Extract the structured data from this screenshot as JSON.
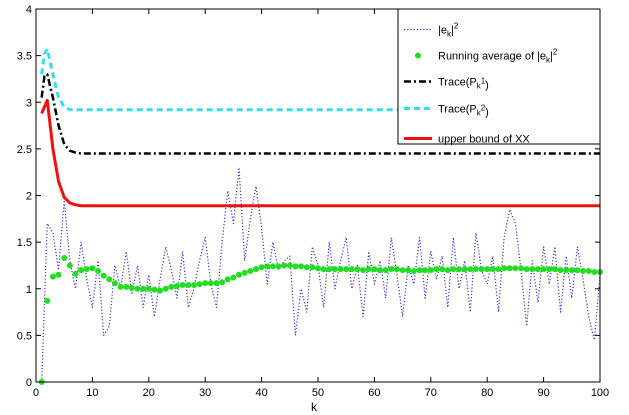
{
  "chart_data": {
    "type": "line",
    "xlabel": "k",
    "ylabel": "",
    "xlim": [
      0,
      100
    ],
    "ylim": [
      0,
      4
    ],
    "x_ticks": [
      "0",
      "10",
      "20",
      "30",
      "40",
      "50",
      "60",
      "70",
      "80",
      "90",
      "100"
    ],
    "y_ticks": [
      "0",
      "0.5",
      "1",
      "1.5",
      "2",
      "2.5",
      "3",
      "3.5",
      "4"
    ],
    "grid": false,
    "legend_position": "top-right",
    "series": [
      {
        "name": "|e_k|^2",
        "legend_main": "|e",
        "legend_sub": "k",
        "legend_sup": "2",
        "style": "dotted",
        "color": "#3333cc",
        "x": [
          1,
          2,
          3,
          4,
          5,
          6,
          7,
          8,
          9,
          10,
          11,
          12,
          13,
          14,
          15,
          16,
          17,
          18,
          19,
          20,
          21,
          22,
          23,
          24,
          25,
          26,
          27,
          28,
          29,
          30,
          31,
          32,
          33,
          34,
          35,
          36,
          37,
          38,
          39,
          40,
          41,
          42,
          43,
          44,
          45,
          46,
          47,
          48,
          49,
          50,
          51,
          52,
          53,
          54,
          55,
          56,
          57,
          58,
          59,
          60,
          61,
          62,
          63,
          64,
          65,
          66,
          67,
          68,
          69,
          70,
          71,
          72,
          73,
          74,
          75,
          76,
          77,
          78,
          79,
          80,
          81,
          82,
          83,
          84,
          85,
          86,
          87,
          88,
          89,
          90,
          91,
          92,
          93,
          94,
          95,
          96,
          97,
          98,
          99,
          100
        ],
        "y": [
          0.0,
          1.7,
          1.6,
          1.2,
          1.95,
          1.3,
          1.0,
          1.5,
          1.1,
          0.8,
          1.3,
          0.5,
          0.6,
          1.25,
          1.0,
          1.4,
          0.95,
          1.25,
          0.8,
          1.15,
          0.7,
          1.1,
          1.45,
          1.2,
          0.9,
          1.4,
          0.8,
          1.0,
          1.3,
          1.55,
          1.05,
          0.8,
          1.5,
          2.05,
          1.7,
          2.3,
          1.3,
          1.75,
          2.1,
          1.65,
          1.05,
          1.5,
          1.2,
          1.3,
          1.35,
          0.5,
          1.0,
          0.75,
          1.45,
          1.25,
          0.8,
          1.5,
          1.0,
          1.3,
          1.55,
          1.0,
          1.25,
          0.7,
          1.4,
          1.05,
          1.3,
          0.9,
          1.55,
          1.15,
          0.7,
          1.25,
          1.05,
          1.55,
          0.9,
          1.4,
          1.1,
          1.35,
          0.8,
          1.55,
          1.0,
          1.3,
          0.75,
          1.6,
          1.2,
          1.05,
          1.35,
          0.75,
          1.55,
          1.85,
          1.7,
          1.2,
          0.6,
          1.3,
          0.85,
          1.45,
          1.05,
          1.45,
          0.75,
          1.35,
          0.9,
          1.45,
          1.1,
          0.7,
          0.45,
          1.15
        ]
      },
      {
        "name": "Running average of |e_k|^2",
        "legend_main": "Running average of |e",
        "legend_sub": "k",
        "legend_sup": "2",
        "style": "markers",
        "color": "#22dd22",
        "x": [
          1,
          2,
          3,
          4,
          5,
          6,
          7,
          8,
          9,
          10,
          11,
          12,
          13,
          14,
          15,
          16,
          17,
          18,
          19,
          20,
          21,
          22,
          23,
          24,
          25,
          26,
          27,
          28,
          29,
          30,
          31,
          32,
          33,
          34,
          35,
          36,
          37,
          38,
          39,
          40,
          41,
          42,
          43,
          44,
          45,
          46,
          47,
          48,
          49,
          50,
          51,
          52,
          53,
          54,
          55,
          56,
          57,
          58,
          59,
          60,
          61,
          62,
          63,
          64,
          65,
          66,
          67,
          68,
          69,
          70,
          71,
          72,
          73,
          74,
          75,
          76,
          77,
          78,
          79,
          80,
          81,
          82,
          83,
          84,
          85,
          86,
          87,
          88,
          89,
          90,
          91,
          92,
          93,
          94,
          95,
          96,
          97,
          98,
          99,
          100
        ],
        "y": [
          0.0,
          0.87,
          1.13,
          1.15,
          1.33,
          1.25,
          1.16,
          1.2,
          1.21,
          1.22,
          1.19,
          1.14,
          1.1,
          1.06,
          1.02,
          1.02,
          1.01,
          1.0,
          1.0,
          1.0,
          0.99,
          0.98,
          1.0,
          1.02,
          1.03,
          1.04,
          1.04,
          1.04,
          1.05,
          1.06,
          1.06,
          1.06,
          1.07,
          1.1,
          1.12,
          1.15,
          1.17,
          1.19,
          1.21,
          1.23,
          1.24,
          1.24,
          1.24,
          1.25,
          1.25,
          1.24,
          1.24,
          1.23,
          1.23,
          1.22,
          1.21,
          1.21,
          1.21,
          1.21,
          1.21,
          1.21,
          1.21,
          1.2,
          1.21,
          1.21,
          1.2,
          1.2,
          1.21,
          1.21,
          1.2,
          1.2,
          1.19,
          1.2,
          1.2,
          1.2,
          1.21,
          1.21,
          1.2,
          1.21,
          1.21,
          1.21,
          1.21,
          1.21,
          1.21,
          1.21,
          1.21,
          1.21,
          1.22,
          1.22,
          1.22,
          1.22,
          1.21,
          1.21,
          1.21,
          1.21,
          1.21,
          1.21,
          1.2,
          1.2,
          1.2,
          1.2,
          1.19,
          1.19,
          1.18,
          1.18
        ]
      },
      {
        "name": "Trace(P_k^1)",
        "legend_main": "Trace(P",
        "legend_sub": "k",
        "legend_sup": "1",
        "legend_tail": ")",
        "style": "dashdot",
        "color": "#000000",
        "x": [
          1,
          1.5,
          2,
          3,
          4,
          5,
          6,
          7,
          8,
          10,
          20,
          30,
          40,
          50,
          60,
          70,
          80,
          90,
          100
        ],
        "y": [
          3.05,
          3.28,
          3.3,
          3.05,
          2.75,
          2.55,
          2.48,
          2.46,
          2.45,
          2.45,
          2.45,
          2.45,
          2.45,
          2.45,
          2.45,
          2.45,
          2.45,
          2.45,
          2.45
        ]
      },
      {
        "name": "Trace(P_k^2)",
        "legend_main": "Trace(P",
        "legend_sub": "k",
        "legend_sup": "2",
        "legend_tail": ")",
        "style": "dashed",
        "color": "#33ddee",
        "x": [
          1,
          1.5,
          2,
          3,
          4,
          5,
          6,
          7,
          10,
          20,
          30,
          40,
          50,
          60,
          70,
          80,
          90,
          100
        ],
        "y": [
          3.3,
          3.52,
          3.57,
          3.3,
          3.05,
          2.95,
          2.92,
          2.92,
          2.92,
          2.92,
          2.92,
          2.92,
          2.92,
          2.92,
          2.92,
          2.92,
          2.92,
          2.92
        ]
      },
      {
        "name": "upper bound of XX",
        "legend_main": "upper bound of XX",
        "style": "solid",
        "color": "#ee1111",
        "x": [
          1,
          2,
          3,
          4,
          5,
          6,
          7,
          8,
          10,
          20,
          30,
          40,
          50,
          60,
          70,
          80,
          90,
          100
        ],
        "y": [
          2.88,
          3.02,
          2.5,
          2.15,
          1.98,
          1.92,
          1.9,
          1.89,
          1.89,
          1.89,
          1.89,
          1.89,
          1.89,
          1.89,
          1.89,
          1.89,
          1.89,
          1.89
        ]
      }
    ]
  }
}
